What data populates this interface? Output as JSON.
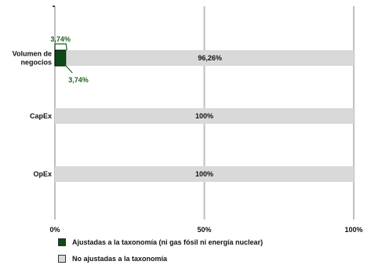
{
  "chart_data": {
    "type": "bar",
    "orientation": "horizontal",
    "stacked": true,
    "categories": [
      "Volumen de negocios",
      "CapEx",
      "OpEx"
    ],
    "category_lines": [
      [
        "Volumen de",
        "negocios"
      ],
      [
        "CapEx"
      ],
      [
        "OpEx"
      ]
    ],
    "series": [
      {
        "name": "Ajustadas a la taxonomía (ni gas fósil ni energía nuclear)",
        "values": [
          3.74,
          0,
          0
        ],
        "color": "#0a4a16",
        "labels": [
          "3,74%",
          "",
          ""
        ]
      },
      {
        "name": "No ajustadas a la taxonomía",
        "values": [
          96.26,
          100,
          100
        ],
        "color": "#d9d9d9",
        "labels": [
          "96,26%",
          "100%",
          "100%"
        ]
      }
    ],
    "callouts": [
      "3,74%",
      "3,74%"
    ],
    "callout_color": "#1e5e1e",
    "xlim": [
      0,
      100
    ],
    "x_ticks": [
      0,
      50,
      100
    ],
    "x_tick_labels": [
      "0%",
      "50%",
      "100%"
    ],
    "grid": "vertical",
    "gridline_color": "#bfbfbf",
    "legend_position": "bottom-left"
  }
}
